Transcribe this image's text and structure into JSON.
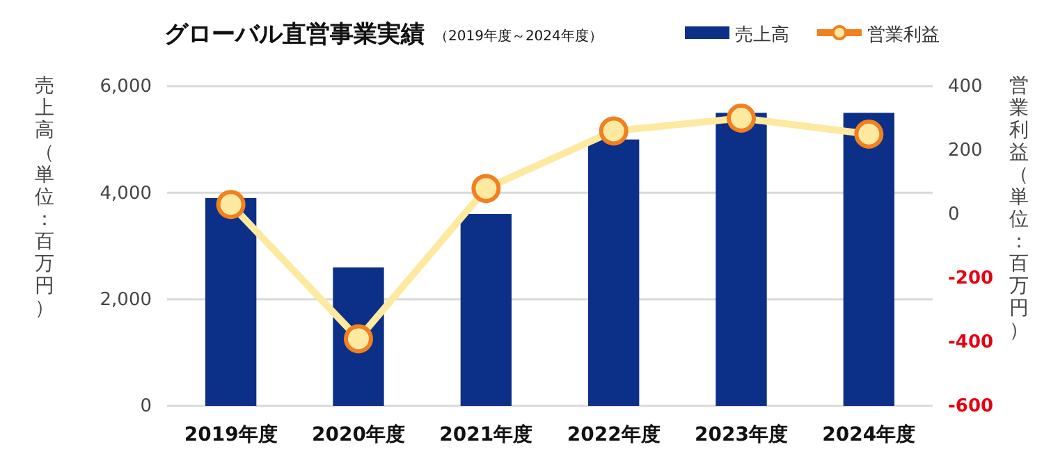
{
  "chart_data": {
    "type": "bar",
    "title": "グローバル直営事業実績",
    "subtitle": "（2019年度～2024年度）",
    "ylabel": "売上高（単位：百万円）",
    "y2label": "営業利益（単位：百万円）",
    "categories": [
      "2019年度",
      "2020年度",
      "2021年度",
      "2022年度",
      "2023年度",
      "2024年度"
    ],
    "series": [
      {
        "name": "売上高",
        "color": "#0c2f87",
        "values": [
          3900,
          2600,
          3600,
          5000,
          5500,
          5500
        ]
      },
      {
        "name": "営業利益",
        "type": "line",
        "axis": "y2",
        "color": "#fde9a0",
        "marker": "circle",
        "values": [
          30,
          -390,
          80,
          260,
          300,
          250
        ]
      }
    ],
    "ylim": [
      0,
      6000
    ],
    "yticks": [
      {
        "value": 0,
        "label": "0"
      },
      {
        "value": 2000,
        "label": "2,000"
      },
      {
        "value": 4000,
        "label": "4,000"
      },
      {
        "value": 6000,
        "label": "6,000"
      }
    ],
    "y2lim": [
      -600,
      400
    ],
    "y2ticks": [
      -600,
      -400,
      -200,
      0,
      200,
      400
    ],
    "grid": "y",
    "legend": "top right"
  }
}
